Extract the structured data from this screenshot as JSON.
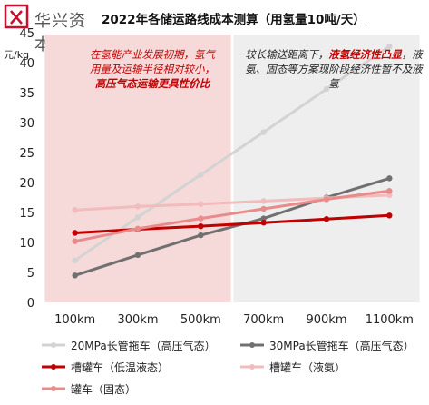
{
  "brand": {
    "name": "华兴资本"
  },
  "notes": {
    "left_line1": "在氢能产业发展初期，氢气",
    "left_line2": "用量及运输半径相对较小，",
    "left_line3": "高压气态运输更具性价比",
    "right_pre": "较长输送距离下，",
    "right_bold": "液氢经济性凸显",
    "right_post": "，液氨、固态等方案现阶段经济性暂不及液氢"
  },
  "chart_data": {
    "type": "line",
    "title": "2022年各储运路线成本测算（用氢量10吨/天）",
    "xlabel": "",
    "ylabel": "元/kg",
    "categories": [
      "100km",
      "300km",
      "500km",
      "700km",
      "900km",
      "1100km"
    ],
    "ylim": [
      0,
      45
    ],
    "yticks": [
      0,
      5,
      10,
      15,
      20,
      25,
      30,
      35,
      40,
      45
    ],
    "grid": false,
    "legend_position": "bottom",
    "shaded_regions": [
      {
        "from": "100km",
        "to": "500km",
        "color": "#f6d9d9"
      },
      {
        "from": "700km",
        "to": "1100km",
        "color": "#eeeeee"
      }
    ],
    "series": [
      {
        "name": "20MPa长管拖车（高压气态）",
        "color": "#d3d3d3",
        "width": 3,
        "values": [
          7.0,
          14.2,
          21.3,
          28.4,
          35.6,
          42.7
        ]
      },
      {
        "name": "30MPa长管拖车（高压气态）",
        "color": "#707070",
        "width": 3,
        "values": [
          4.5,
          7.9,
          11.2,
          14.0,
          17.5,
          20.7
        ]
      },
      {
        "name": "槽罐车（低温液态）",
        "color": "#c00000",
        "width": 3,
        "values": [
          11.6,
          12.2,
          12.7,
          13.3,
          13.9,
          14.5
        ]
      },
      {
        "name": "槽罐车（液氨）",
        "color": "#f2bcbc",
        "width": 3,
        "values": [
          15.4,
          16.0,
          16.4,
          16.9,
          17.4,
          17.9
        ]
      },
      {
        "name": "罐车（固态）",
        "color": "#e98b8b",
        "width": 3,
        "values": [
          10.2,
          12.3,
          14.0,
          15.6,
          17.2,
          18.6
        ]
      }
    ]
  }
}
